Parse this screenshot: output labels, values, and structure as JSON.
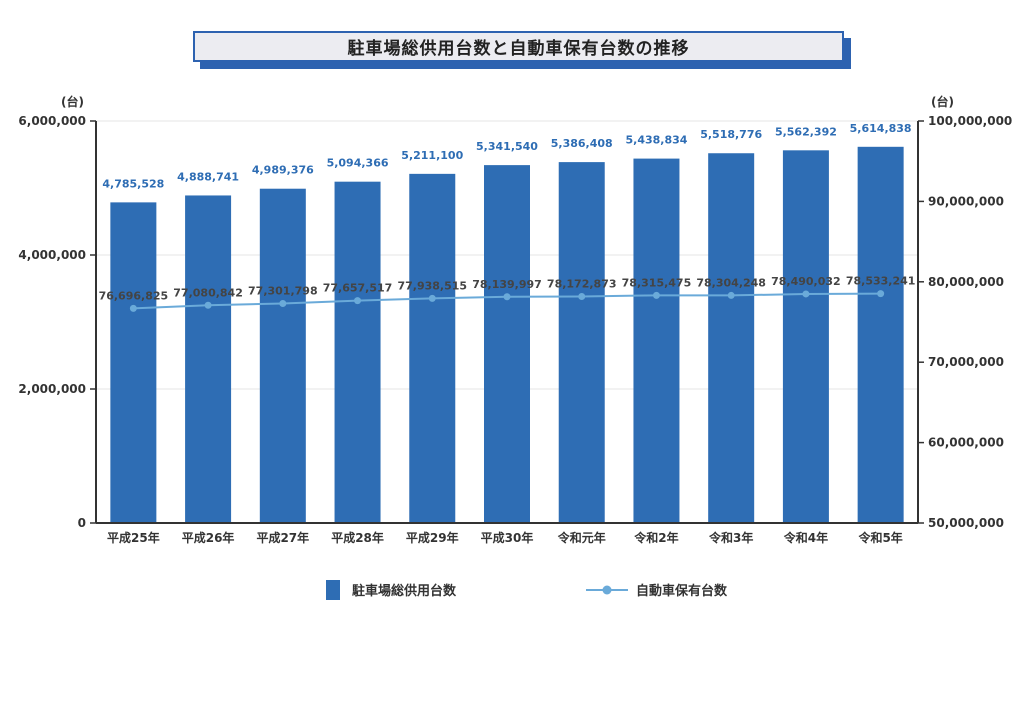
{
  "title": "駐車場総供用台数と自動車保有台数の推移",
  "colors": {
    "bar": "#2e6db4",
    "line": "#6aaad9",
    "bar_label": "#2e6db4",
    "line_label": "#444444",
    "axis": "#333333",
    "grid": "#e6e6e6",
    "title_border": "#2d62b0",
    "title_bg": "#ececf1"
  },
  "chart_data": {
    "type": "bar",
    "categories": [
      "平成25年",
      "平成26年",
      "平成27年",
      "平成28年",
      "平成29年",
      "平成30年",
      "令和元年",
      "令和2年",
      "令和3年",
      "令和4年",
      "令和5年"
    ],
    "series": [
      {
        "name": "駐車場総供用台数",
        "type": "bar",
        "axis": "left",
        "values": [
          4785528,
          4888741,
          4989376,
          5094366,
          5211100,
          5341540,
          5386408,
          5438834,
          5518776,
          5562392,
          5614838
        ],
        "labels": [
          "4,785,528",
          "4,888,741",
          "4,989,376",
          "5,094,366",
          "5,211,100",
          "5,341,540",
          "5,386,408",
          "5,438,834",
          "5,518,776",
          "5,562,392",
          "5,614,838"
        ]
      },
      {
        "name": "自動車保有台数",
        "type": "line",
        "axis": "right",
        "values": [
          76696825,
          77080842,
          77301798,
          77657517,
          77938515,
          78139997,
          78172873,
          78315475,
          78304248,
          78490032,
          78533241
        ],
        "labels": [
          "76,696,825",
          "77,080,842",
          "77,301,798",
          "77,657,517",
          "77,938,515",
          "78,139,997",
          "78,172,873",
          "78,315,475",
          "78,304,248",
          "78,490,032",
          "78,533,241"
        ]
      }
    ],
    "y_left": {
      "unit": "(台)",
      "range": [
        0,
        6000000
      ],
      "ticks": [
        0,
        2000000,
        4000000,
        6000000
      ],
      "tick_labels": [
        "0",
        "2,000,000",
        "4,000,000",
        "6,000,000"
      ]
    },
    "y_right": {
      "unit": "(台)",
      "range": [
        50000000,
        100000000
      ],
      "ticks": [
        50000000,
        60000000,
        70000000,
        80000000,
        90000000,
        100000000
      ],
      "tick_labels": [
        "50,000,000",
        "60,000,000",
        "70,000,000",
        "80,000,000",
        "90,000,000",
        "100,000,000"
      ]
    },
    "grid": true,
    "legend_position": "bottom"
  }
}
